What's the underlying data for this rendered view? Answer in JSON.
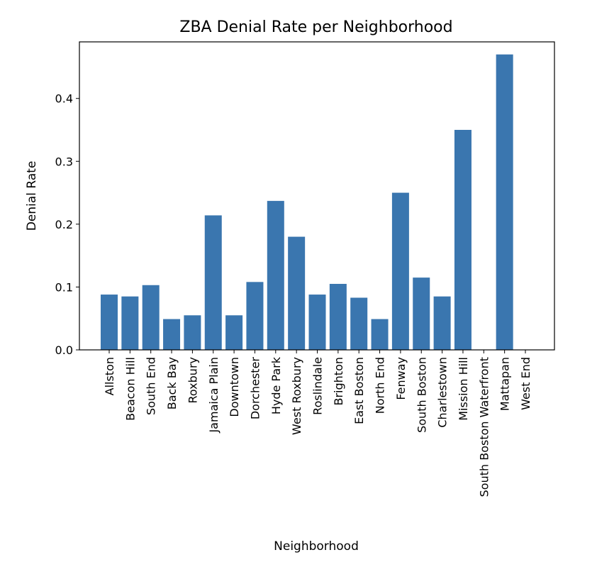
{
  "chart_data": {
    "type": "bar",
    "title": "ZBA Denial Rate per Neighborhood",
    "xlabel": "Neighborhood",
    "ylabel": "Denial Rate",
    "ylim": [
      0,
      0.49
    ],
    "yticks": [
      "0.0",
      "0.1",
      "0.2",
      "0.3",
      "0.4"
    ],
    "ytick_values": [
      0,
      0.1,
      0.2,
      0.3,
      0.4
    ],
    "grid": false,
    "bar_color": "#3a76af",
    "categories": [
      "Allston",
      "Beacon Hill",
      "South End",
      "Back Bay",
      "Roxbury",
      "Jamaica Plain",
      "Downtown",
      "Dorchester",
      "Hyde Park",
      "West Roxbury",
      "Roslindale",
      "Brighton",
      "East Boston",
      "North End",
      "Fenway",
      "South Boston",
      "Charlestown",
      "Mission Hill",
      "South Boston Waterfront",
      "Mattapan",
      "West End"
    ],
    "values": [
      0.088,
      0.085,
      0.103,
      0.049,
      0.055,
      0.214,
      0.055,
      0.108,
      0.237,
      0.18,
      0.088,
      0.105,
      0.083,
      0.049,
      0.25,
      0.115,
      0.085,
      0.35,
      0.0,
      0.47,
      0.0
    ]
  }
}
